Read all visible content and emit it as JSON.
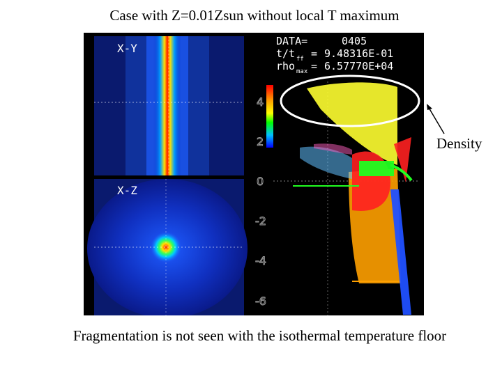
{
  "slide": {
    "title": "Case with Z=0.01Zsun without local T maximum",
    "caption": "Fragmentation is not seen with the isothermal temperature floor",
    "annotation_label": "Density"
  },
  "figure": {
    "panel_xy_label": "X-Y",
    "panel_xz_label": "X-Z",
    "data_label": "DATA=",
    "data_value": "0405",
    "time_label_main": "t/t",
    "time_label_sub": "ff",
    "time_value": "9.48316E-01",
    "rho_label_main": "rho",
    "rho_label_sub": "max",
    "rho_value": "6.57770E+04",
    "axis_ticks": [
      "4",
      "2",
      "0",
      "-2",
      "-4",
      "-6"
    ]
  }
}
